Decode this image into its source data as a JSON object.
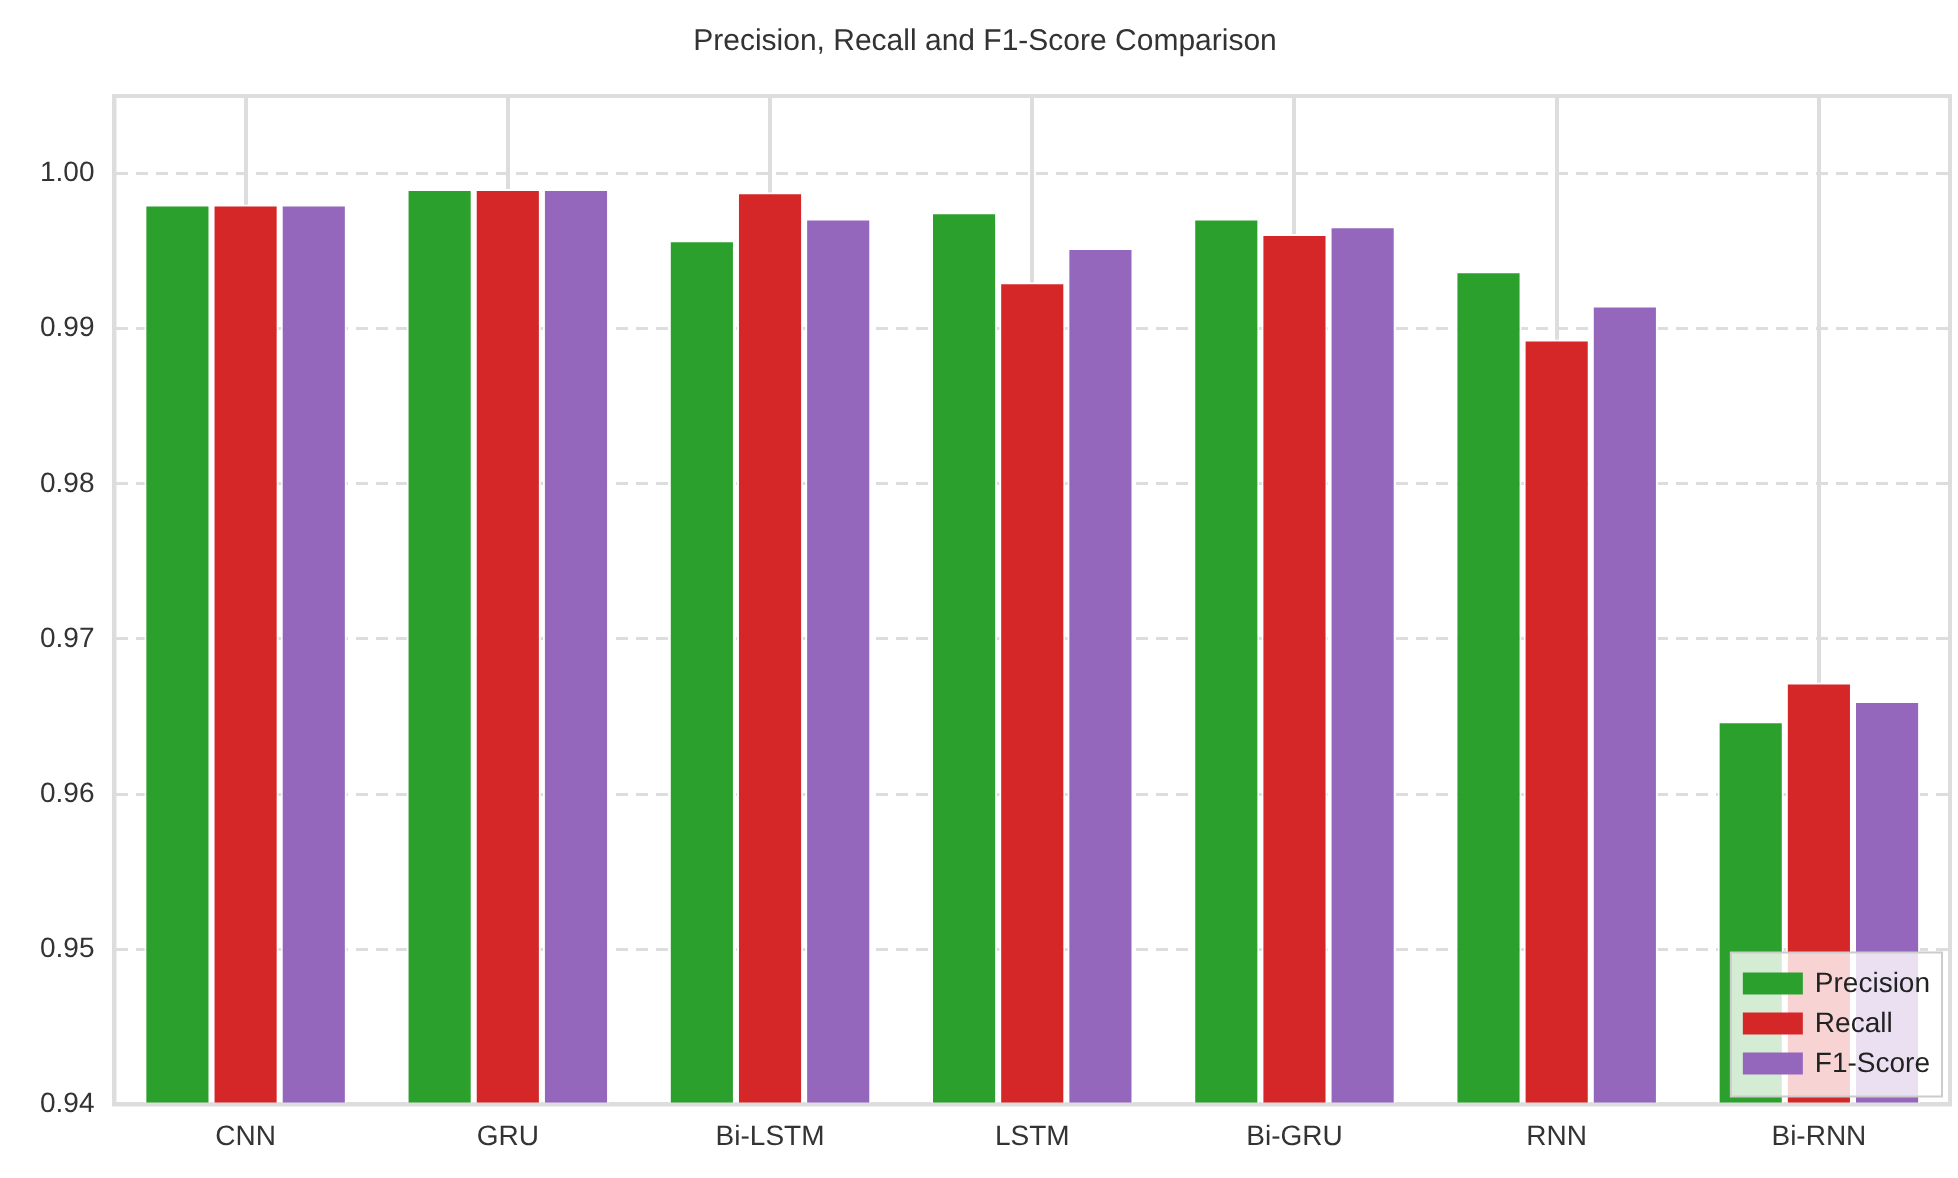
{
  "chart_data": {
    "type": "bar",
    "title": "Precision, Recall and F1-Score Comparison",
    "categories": [
      "CNN",
      "GRU",
      "Bi-LSTM",
      "LSTM",
      "Bi-GRU",
      "RNN",
      "Bi-RNN"
    ],
    "series": [
      {
        "name": "Precision",
        "color": "#2ca02c",
        "values": [
          0.998,
          0.999,
          0.9957,
          0.9975,
          0.9971,
          0.9937,
          0.9647
        ]
      },
      {
        "name": "Recall",
        "color": "#d62728",
        "values": [
          0.998,
          0.999,
          0.9988,
          0.993,
          0.9961,
          0.9893,
          0.9672
        ]
      },
      {
        "name": "F1-Score",
        "color": "#9467bd",
        "values": [
          0.998,
          0.999,
          0.9971,
          0.9952,
          0.9966,
          0.9915,
          0.966
        ]
      }
    ],
    "ylim": [
      0.94,
      1.005
    ],
    "yticks": [
      0.94,
      0.95,
      0.96,
      0.97,
      0.98,
      0.99,
      {
        "value": 1.0,
        "label": "1.00"
      }
    ],
    "grid": true,
    "legend": "bottom right"
  }
}
